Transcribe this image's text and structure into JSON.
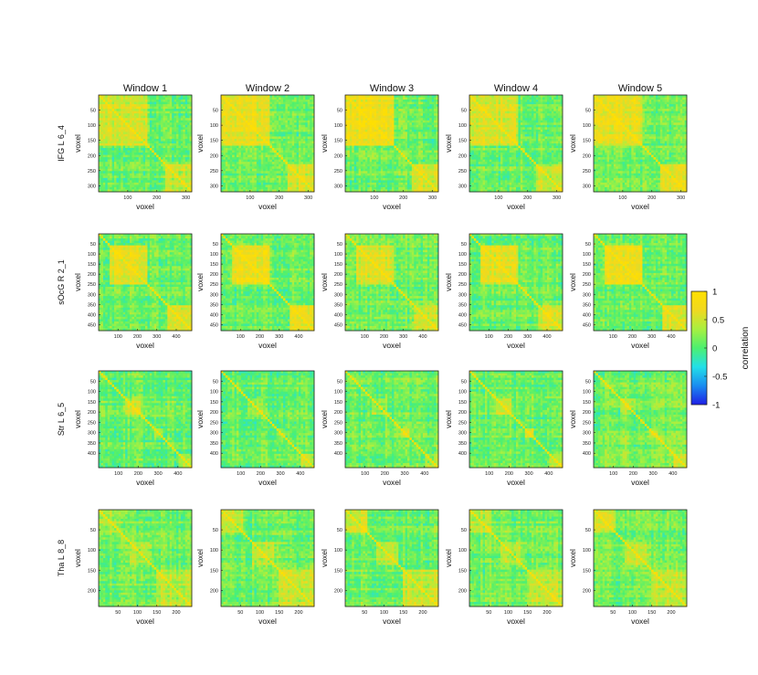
{
  "chart_data": {
    "type": "heatmap",
    "columns": [
      "Window 1",
      "Window 2",
      "Window 3",
      "Window 4",
      "Window 5"
    ],
    "rows": [
      {
        "label": "IFG L 6_4",
        "n_voxels": 320,
        "y_ticks": [
          50,
          100,
          150,
          200,
          250,
          300
        ],
        "x_ticks": [
          100,
          200,
          300
        ],
        "blocks": [
          {
            "start": 0,
            "end": 170,
            "strength": 0.55
          },
          {
            "start": 230,
            "end": 320,
            "strength": 0.45
          }
        ]
      },
      {
        "label": "sOcG R 2_1",
        "n_voxels": 480,
        "y_ticks": [
          50,
          100,
          150,
          200,
          250,
          300,
          350,
          400,
          450
        ],
        "x_ticks": [
          100,
          200,
          300,
          400
        ],
        "blocks": [
          {
            "start": 60,
            "end": 250,
            "strength": 0.55
          },
          {
            "start": 360,
            "end": 480,
            "strength": 0.45
          }
        ]
      },
      {
        "label": "Str L 6_5",
        "n_voxels": 470,
        "y_ticks": [
          50,
          100,
          150,
          200,
          250,
          300,
          350,
          400
        ],
        "x_ticks": [
          100,
          200,
          300,
          400
        ],
        "blocks": [
          {
            "start": 130,
            "end": 210,
            "strength": 0.3
          },
          {
            "start": 280,
            "end": 330,
            "strength": 0.3
          },
          {
            "start": 400,
            "end": 470,
            "strength": 0.3
          }
        ]
      },
      {
        "label": "Tha L 8_8",
        "n_voxels": 240,
        "y_ticks": [
          50,
          100,
          150,
          200
        ],
        "x_ticks": [
          50,
          100,
          150,
          200
        ],
        "blocks": [
          {
            "start": 0,
            "end": 60,
            "strength": 0.35
          },
          {
            "start": 80,
            "end": 140,
            "strength": 0.3
          },
          {
            "start": 150,
            "end": 240,
            "strength": 0.35
          }
        ]
      }
    ],
    "xlabel": "voxel",
    "ylabel": "voxel",
    "colorbar": {
      "label": "correlation",
      "range": [
        -1,
        1
      ],
      "ticks": [
        "1",
        "0.5",
        "0",
        "-0.5",
        "-1"
      ],
      "colormap": [
        "#1f1fe6",
        "#1a8cf0",
        "#22e0e8",
        "#4cf070",
        "#a8f040",
        "#f0d820",
        "#ffe000"
      ]
    }
  }
}
